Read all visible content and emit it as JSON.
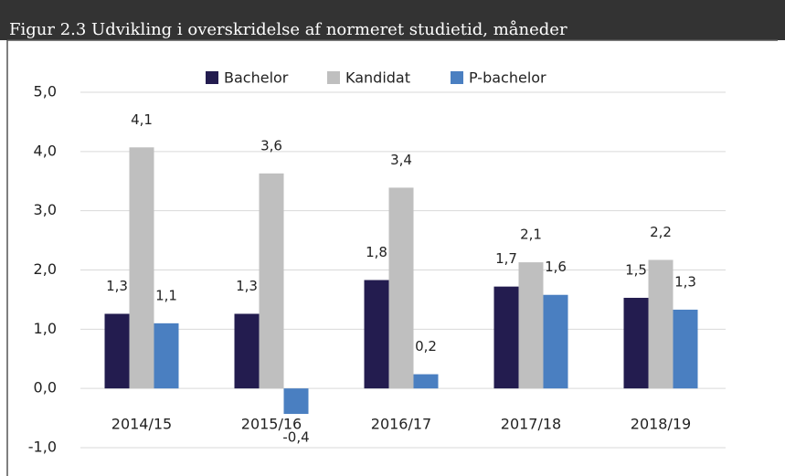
{
  "chart_data": {
    "type": "bar",
    "title": "Figur 2.3 Udvikling i overskridelse af normeret studietid, måneder",
    "categories": [
      "2014/15",
      "2015/16",
      "2016/17",
      "2017/18",
      "2018/19"
    ],
    "series": [
      {
        "name": "Bachelor",
        "color": "#231c4f",
        "values": [
          1.26,
          1.26,
          1.83,
          1.72,
          1.53
        ],
        "value_labels": [
          "1,3",
          "1,3",
          "1,8",
          "1,7",
          "1,5"
        ]
      },
      {
        "name": "Kandidat",
        "color": "#bfbfbf",
        "values": [
          4.07,
          3.63,
          3.39,
          2.13,
          2.17
        ],
        "value_labels": [
          "4,1",
          "3,6",
          "3,4",
          "2,1",
          "2,2"
        ]
      },
      {
        "name": "P-bachelor",
        "color": "#4a7fc1",
        "values": [
          1.1,
          -0.43,
          0.24,
          1.58,
          1.33
        ],
        "value_labels": [
          "1,1",
          "-0,4",
          "0,2",
          "1,6",
          "1,3"
        ]
      }
    ],
    "ylim": [
      -1,
      5
    ],
    "yticks": [
      {
        "value": -1,
        "label": "-1,0"
      },
      {
        "value": 0,
        "label": "0,0"
      },
      {
        "value": 1,
        "label": "1,0"
      },
      {
        "value": 2,
        "label": "2,0"
      },
      {
        "value": 3,
        "label": "3,0"
      },
      {
        "value": 4,
        "label": "4,0"
      },
      {
        "value": 5,
        "label": "5,0"
      }
    ],
    "grid": true,
    "legend": "top"
  }
}
